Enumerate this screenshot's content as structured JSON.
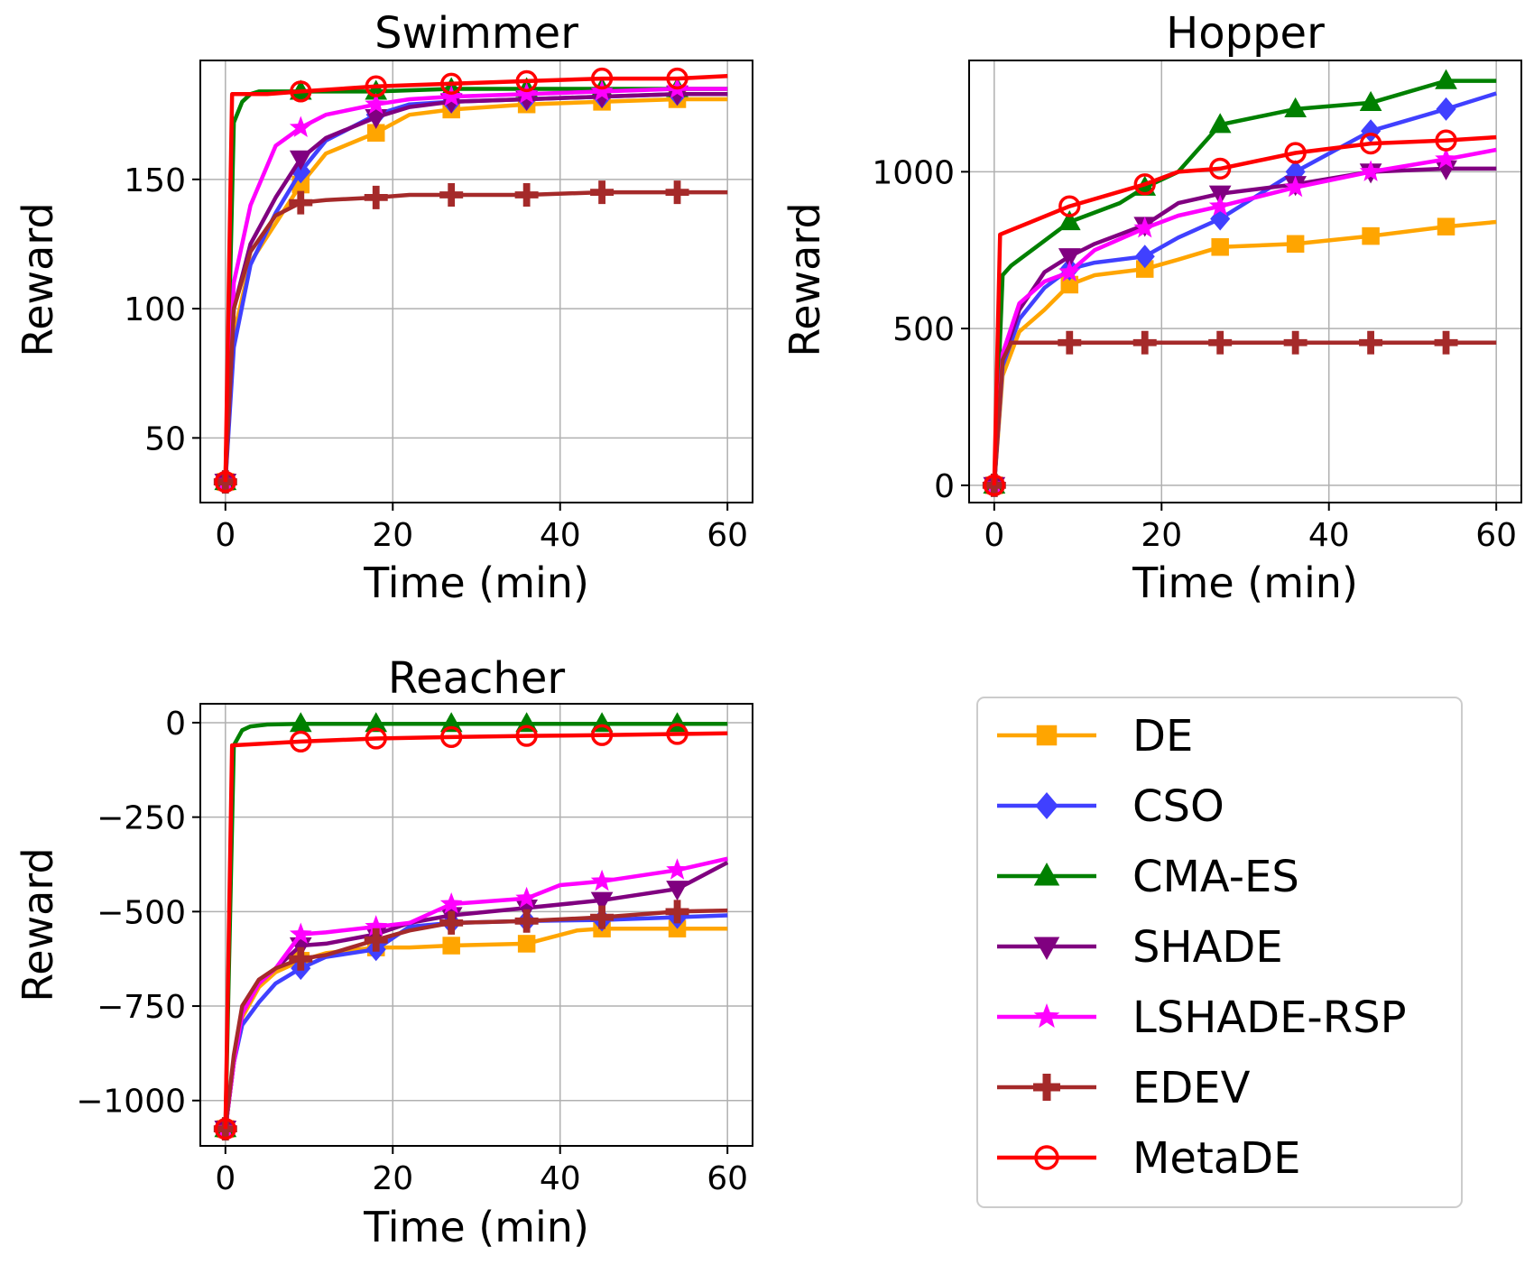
{
  "legend": {
    "entries": [
      {
        "name": "DE",
        "color": "#FFA500",
        "marker": "square"
      },
      {
        "name": "CSO",
        "color": "#4040FF",
        "marker": "diamond"
      },
      {
        "name": "CMA-ES",
        "color": "#008000",
        "marker": "triangle-up"
      },
      {
        "name": "SHADE",
        "color": "#800080",
        "marker": "triangle-down"
      },
      {
        "name": "LSHADE-RSP",
        "color": "#FF00FF",
        "marker": "star"
      },
      {
        "name": "EDEV",
        "color": "#A52A2A",
        "marker": "plus"
      },
      {
        "name": "MetaDE",
        "color": "#FF0000",
        "marker": "circle-open"
      }
    ],
    "placement": "bottom-right"
  },
  "chart_data": [
    {
      "type": "line",
      "title": "Swimmer",
      "xlabel": "Time (min)",
      "ylabel": "Reward",
      "xlim": [
        -3,
        63
      ],
      "ylim": [
        25,
        196
      ],
      "xticks": [
        0,
        20,
        40,
        60
      ],
      "xtick_labels": [
        "0",
        "20",
        "40",
        "60"
      ],
      "yticks": [
        50,
        100,
        150
      ],
      "ytick_labels": [
        "50",
        "100",
        "150"
      ],
      "grid": true,
      "marker_x": [
        0,
        9,
        18,
        27,
        36,
        45,
        54
      ],
      "series": [
        {
          "name": "DE",
          "x": [
            0,
            1,
            3,
            6,
            9,
            12,
            18,
            22,
            27,
            36,
            45,
            54,
            60
          ],
          "y": [
            33,
            90,
            118,
            133,
            148,
            160,
            168,
            175,
            177,
            179,
            180,
            181,
            181
          ]
        },
        {
          "name": "CSO",
          "x": [
            0,
            1,
            3,
            6,
            9,
            12,
            18,
            22,
            27,
            36,
            45,
            54,
            60
          ],
          "y": [
            33,
            85,
            117,
            137,
            153,
            165,
            175,
            179,
            180,
            181,
            182,
            183,
            183
          ]
        },
        {
          "name": "CMA-ES",
          "x": [
            0,
            1,
            2,
            3,
            4,
            6,
            9,
            18,
            27,
            36,
            45,
            54,
            60
          ],
          "y": [
            33,
            172,
            180,
            183,
            184,
            184,
            184,
            184,
            185,
            185,
            185,
            185,
            185
          ]
        },
        {
          "name": "SHADE",
          "x": [
            0,
            1,
            3,
            6,
            9,
            12,
            18,
            22,
            27,
            36,
            45,
            54,
            60
          ],
          "y": [
            33,
            100,
            125,
            143,
            158,
            166,
            174,
            178,
            180,
            181,
            182,
            183,
            183
          ]
        },
        {
          "name": "LSHADE-RSP",
          "x": [
            0,
            1,
            3,
            6,
            9,
            12,
            18,
            22,
            27,
            36,
            45,
            54,
            60
          ],
          "y": [
            33,
            110,
            140,
            163,
            170,
            175,
            179,
            181,
            182,
            183,
            184,
            185,
            185
          ]
        },
        {
          "name": "EDEV",
          "x": [
            0,
            1,
            3,
            6,
            9,
            12,
            18,
            22,
            27,
            36,
            45,
            54,
            60
          ],
          "y": [
            33,
            100,
            122,
            136,
            141,
            142,
            143,
            144,
            144,
            144,
            145,
            145,
            145
          ]
        },
        {
          "name": "MetaDE",
          "x": [
            0,
            0.8,
            5,
            9,
            18,
            27,
            36,
            45,
            54,
            60
          ],
          "y": [
            33,
            183,
            183,
            184,
            186,
            187,
            188,
            189,
            189,
            190
          ]
        }
      ]
    },
    {
      "type": "line",
      "title": "Hopper",
      "xlabel": "Time (min)",
      "ylabel": "Reward",
      "xlim": [
        -3,
        63
      ],
      "ylim": [
        -55,
        1355
      ],
      "xticks": [
        0,
        20,
        40,
        60
      ],
      "xtick_labels": [
        "0",
        "20",
        "40",
        "60"
      ],
      "yticks": [
        0,
        500,
        1000
      ],
      "ytick_labels": [
        "0",
        "500",
        "1000"
      ],
      "grid": true,
      "marker_x": [
        0,
        9,
        18,
        27,
        36,
        45,
        54
      ],
      "series": [
        {
          "name": "DE",
          "x": [
            0,
            1,
            3,
            6,
            9,
            12,
            18,
            22,
            27,
            36,
            45,
            54,
            60
          ],
          "y": [
            0,
            350,
            490,
            560,
            640,
            670,
            690,
            720,
            760,
            770,
            795,
            825,
            840
          ]
        },
        {
          "name": "CSO",
          "x": [
            0,
            1,
            3,
            6,
            9,
            12,
            18,
            22,
            27,
            36,
            45,
            54,
            60
          ],
          "y": [
            0,
            380,
            530,
            630,
            690,
            710,
            730,
            790,
            850,
            1000,
            1130,
            1200,
            1250
          ]
        },
        {
          "name": "CMA-ES",
          "x": [
            0,
            1,
            2,
            5,
            9,
            15,
            18,
            22,
            27,
            36,
            45,
            54,
            60
          ],
          "y": [
            0,
            670,
            700,
            760,
            840,
            900,
            950,
            1000,
            1150,
            1200,
            1220,
            1290,
            1290
          ]
        },
        {
          "name": "SHADE",
          "x": [
            0,
            1,
            3,
            6,
            9,
            12,
            18,
            22,
            27,
            36,
            45,
            54,
            60
          ],
          "y": [
            0,
            400,
            560,
            680,
            730,
            770,
            830,
            900,
            930,
            960,
            1000,
            1010,
            1010
          ]
        },
        {
          "name": "LSHADE-RSP",
          "x": [
            0,
            1,
            3,
            6,
            9,
            12,
            18,
            22,
            27,
            36,
            45,
            54,
            60
          ],
          "y": [
            0,
            420,
            580,
            650,
            680,
            750,
            820,
            860,
            890,
            950,
            1000,
            1040,
            1070
          ]
        },
        {
          "name": "EDEV",
          "x": [
            0,
            1,
            2,
            9,
            18,
            27,
            36,
            45,
            54,
            60
          ],
          "y": [
            0,
            400,
            455,
            455,
            455,
            455,
            455,
            455,
            455,
            455
          ]
        },
        {
          "name": "MetaDE",
          "x": [
            0,
            0.7,
            9,
            18,
            22,
            27,
            36,
            45,
            54,
            60
          ],
          "y": [
            0,
            800,
            890,
            960,
            1000,
            1010,
            1060,
            1090,
            1100,
            1110
          ]
        }
      ]
    },
    {
      "type": "line",
      "title": "Reacher",
      "xlabel": "Time (min)",
      "ylabel": "Reward",
      "xlim": [
        -3,
        63
      ],
      "ylim": [
        -1120,
        50
      ],
      "xticks": [
        0,
        20,
        40,
        60
      ],
      "xtick_labels": [
        "0",
        "20",
        "40",
        "60"
      ],
      "yticks": [
        -1000,
        -750,
        -500,
        -250,
        0
      ],
      "ytick_labels": [
        "−1000",
        "−750",
        "−500",
        "−250",
        "0"
      ],
      "grid": true,
      "marker_x": [
        0,
        9,
        18,
        27,
        36,
        45,
        54
      ],
      "series": [
        {
          "name": "DE",
          "x": [
            0,
            1,
            2,
            4,
            6,
            9,
            12,
            18,
            22,
            27,
            36,
            42,
            45,
            54,
            60
          ],
          "y": [
            -1075,
            -900,
            -780,
            -700,
            -660,
            -630,
            -610,
            -595,
            -595,
            -590,
            -585,
            -550,
            -545,
            -545,
            -545
          ]
        },
        {
          "name": "CSO",
          "x": [
            0,
            1,
            2,
            4,
            6,
            9,
            12,
            18,
            22,
            27,
            36,
            45,
            54,
            60
          ],
          "y": [
            -1075,
            -900,
            -800,
            -740,
            -690,
            -650,
            -620,
            -600,
            -540,
            -530,
            -525,
            -522,
            -515,
            -510
          ]
        },
        {
          "name": "CMA-ES",
          "x": [
            0,
            1,
            2,
            3,
            5,
            9,
            18,
            27,
            36,
            45,
            54,
            60
          ],
          "y": [
            -1075,
            -60,
            -20,
            -10,
            -5,
            -3,
            -3,
            -3,
            -3,
            -3,
            -3,
            -3
          ]
        },
        {
          "name": "SHADE",
          "x": [
            0,
            1,
            2,
            4,
            6,
            9,
            12,
            18,
            22,
            27,
            36,
            45,
            54,
            60
          ],
          "y": [
            -1075,
            -900,
            -770,
            -690,
            -650,
            -590,
            -585,
            -560,
            -530,
            -510,
            -490,
            -470,
            -440,
            -370
          ]
        },
        {
          "name": "LSHADE-RSP",
          "x": [
            0,
            1,
            2,
            4,
            6,
            9,
            12,
            18,
            22,
            27,
            36,
            40,
            45,
            54,
            60
          ],
          "y": [
            -1075,
            -900,
            -770,
            -690,
            -650,
            -560,
            -555,
            -540,
            -530,
            -480,
            -465,
            -430,
            -420,
            -390,
            -360
          ]
        },
        {
          "name": "EDEV",
          "x": [
            0,
            1,
            2,
            4,
            6,
            9,
            12,
            18,
            22,
            27,
            36,
            45,
            54,
            60
          ],
          "y": [
            -1075,
            -880,
            -750,
            -680,
            -650,
            -625,
            -615,
            -575,
            -550,
            -530,
            -525,
            -515,
            -500,
            -497
          ]
        },
        {
          "name": "MetaDE",
          "x": [
            0,
            0.8,
            9,
            18,
            27,
            36,
            45,
            54,
            60
          ],
          "y": [
            -1075,
            -60,
            -50,
            -42,
            -38,
            -35,
            -33,
            -30,
            -28
          ]
        }
      ]
    }
  ]
}
